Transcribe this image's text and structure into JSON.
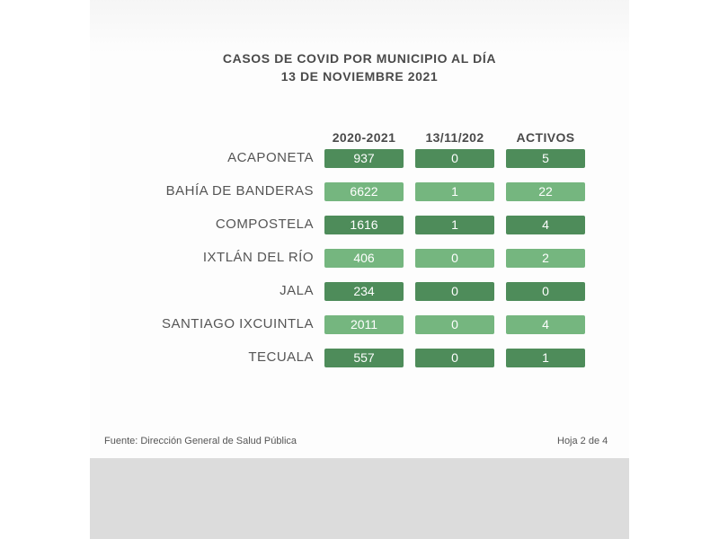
{
  "title_line1": "CASOS DE COVID POR MUNICIPIO AL DÍA",
  "title_line2": "13 DE NOVIEMBRE 2021",
  "footer": {
    "source": "Fuente: Dirección General de Salud Pública",
    "page": "Hoja 2 de 4"
  },
  "colors": {
    "dark_green": "#4e8c5a",
    "light_green": "#75b67f",
    "text": "#4a4a4a"
  },
  "chart_data": {
    "type": "table",
    "columns": [
      "2020-2021",
      "13/11/202",
      "ACTIVOS"
    ],
    "rows": [
      {
        "municipio": "ACAPONETA",
        "values": [
          "937",
          "0",
          "5"
        ],
        "shade": "dark"
      },
      {
        "municipio": "BAHÍA DE BANDERAS",
        "values": [
          "6622",
          "1",
          "22"
        ],
        "shade": "light"
      },
      {
        "municipio": "COMPOSTELA",
        "values": [
          "1616",
          "1",
          "4"
        ],
        "shade": "dark"
      },
      {
        "municipio": "IXTLÁN DEL RÍO",
        "values": [
          "406",
          "0",
          "2"
        ],
        "shade": "light"
      },
      {
        "municipio": "JALA",
        "values": [
          "234",
          "0",
          "0"
        ],
        "shade": "dark"
      },
      {
        "municipio": "SANTIAGO IXCUINTLA",
        "values": [
          "2011",
          "0",
          "4"
        ],
        "shade": "light"
      },
      {
        "municipio": "TECUALA",
        "values": [
          "557",
          "0",
          "1"
        ],
        "shade": "dark"
      }
    ]
  }
}
